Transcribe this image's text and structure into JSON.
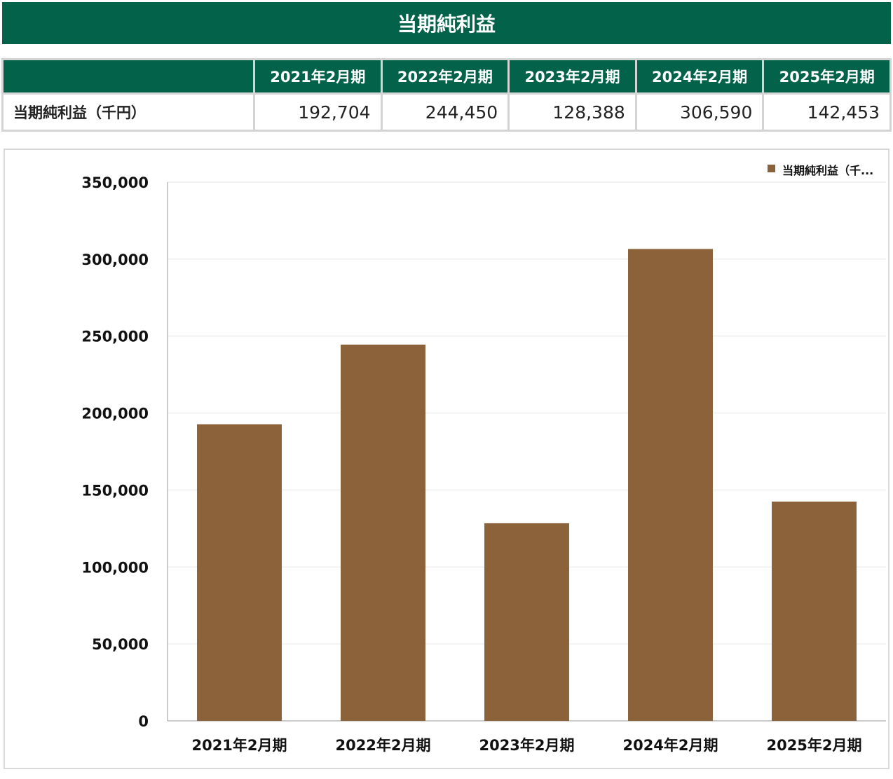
{
  "title": "当期純利益",
  "table": {
    "headers": [
      "",
      "2021年2月期",
      "2022年2月期",
      "2023年2月期",
      "2024年2月期",
      "2025年2月期"
    ],
    "row_label": "当期純利益（千円）",
    "values": [
      "192,704",
      "244,450",
      "128,388",
      "306,590",
      "142,453"
    ]
  },
  "colors": {
    "header_bg": "#02624a",
    "bar": "#8b6239"
  },
  "chart_data": {
    "type": "bar",
    "categories": [
      "2021年2月期",
      "2022年2月期",
      "2023年2月期",
      "2024年2月期",
      "2025年2月期"
    ],
    "series": [
      {
        "name": "当期純利益（千...",
        "values": [
          192704,
          244450,
          128388,
          306590,
          142453
        ]
      }
    ],
    "ylim": [
      0,
      350000
    ],
    "yticks": [
      0,
      50000,
      100000,
      150000,
      200000,
      250000,
      300000,
      350000
    ],
    "ytick_labels": [
      "0",
      "50,000",
      "100,000",
      "150,000",
      "200,000",
      "250,000",
      "300,000",
      "350,000"
    ],
    "grid": true,
    "legend": "top-right"
  }
}
